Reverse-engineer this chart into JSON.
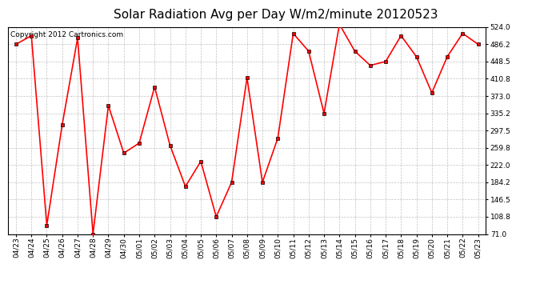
{
  "title": "Solar Radiation Avg per Day W/m2/minute 20120523",
  "copyright_text": "Copyright 2012 Cartronics.com",
  "labels": [
    "04/23",
    "04/24",
    "04/25",
    "04/26",
    "04/27",
    "04/28",
    "04/29",
    "04/30",
    "05/01",
    "05/02",
    "05/03",
    "05/04",
    "05/05",
    "05/06",
    "05/07",
    "05/08",
    "05/09",
    "05/10",
    "05/11",
    "05/12",
    "05/13",
    "05/14",
    "05/15",
    "05/16",
    "05/17",
    "05/18",
    "05/19",
    "05/20",
    "05/21",
    "05/22",
    "05/23"
  ],
  "values": [
    486.2,
    505.0,
    90.0,
    310.0,
    500.0,
    71.0,
    352.0,
    248.0,
    270.0,
    393.0,
    265.0,
    175.0,
    230.0,
    108.8,
    184.2,
    413.0,
    184.2,
    281.0,
    510.0,
    471.0,
    335.0,
    530.0,
    471.0,
    440.0,
    448.5,
    505.0,
    459.0,
    380.0,
    459.0,
    510.0,
    486.2
  ],
  "yticks": [
    71.0,
    108.8,
    146.5,
    184.2,
    222.0,
    259.8,
    297.5,
    335.2,
    373.0,
    410.8,
    448.5,
    486.2,
    524.0
  ],
  "ymin": 71.0,
  "ymax": 524.0,
  "line_color": "#ff0000",
  "marker_color": "#000000",
  "bg_color": "#ffffff",
  "grid_color": "#999999",
  "title_fontsize": 11,
  "copyright_fontsize": 6.5,
  "tick_fontsize": 6.5
}
